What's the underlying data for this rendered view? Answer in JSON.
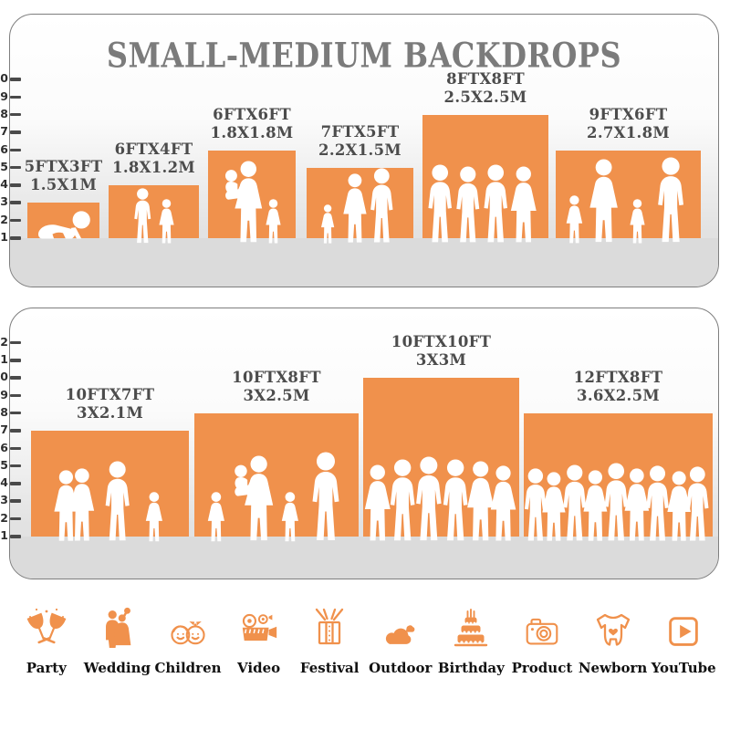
{
  "title": "SMALL-MEDIUM BACKDROPS",
  "colors": {
    "accent": "#F0914C",
    "title_text": "#7B7B7B",
    "bar_label_text": "#4C4C4C",
    "axis_text": "#2E2E2E",
    "floor": "#DBDBDB",
    "panel_border": "#7E7E7E",
    "figure": "#FFFFFF",
    "category_label_text": "#111111"
  },
  "chart_data": [
    {
      "type": "bar",
      "title": "SMALL-MEDIUM BACKDROPS",
      "ylabel": "",
      "ylim": [
        0,
        10
      ],
      "tick_step": 1,
      "grid": false,
      "legend": "none",
      "bars": [
        {
          "size_ft": "5FTX3FT",
          "size_m": "1.5X1M",
          "width_ft": 5,
          "height_ft": 3,
          "figures": [
            "crawling baby"
          ]
        },
        {
          "size_ft": "6FTX4FT",
          "size_m": "1.8X1.2M",
          "width_ft": 6,
          "height_ft": 4,
          "figures": [
            "boy",
            "girl"
          ]
        },
        {
          "size_ft": "6FTX6FT",
          "size_m": "1.8X1.8M",
          "width_ft": 6,
          "height_ft": 6,
          "figures": [
            "woman holding child",
            "girl"
          ]
        },
        {
          "size_ft": "7FTX5FT",
          "size_m": "2.2X1.5M",
          "width_ft": 7,
          "height_ft": 5,
          "figures": [
            "toddler",
            "woman",
            "man"
          ]
        },
        {
          "size_ft": "8FTX8FT",
          "size_m": "2.5X2.5M",
          "width_ft": 8,
          "height_ft": 8,
          "figures": [
            "man",
            "man",
            "man",
            "woman"
          ]
        },
        {
          "size_ft": "9FTX6FT",
          "size_m": "2.7X1.8M",
          "width_ft": 9,
          "height_ft": 6,
          "figures": [
            "girl",
            "woman",
            "girl",
            "man"
          ]
        }
      ]
    },
    {
      "type": "bar",
      "title": "",
      "ylabel": "",
      "ylim": [
        0,
        12
      ],
      "tick_step": 1,
      "grid": false,
      "legend": "none",
      "bars": [
        {
          "size_ft": "10FTX7FT",
          "size_m": "3X2.1M",
          "width_ft": 10,
          "height_ft": 7,
          "figures": [
            "woman",
            "woman",
            "man",
            "girl"
          ]
        },
        {
          "size_ft": "10FTX8FT",
          "size_m": "3X2.5M",
          "width_ft": 10,
          "height_ft": 8,
          "figures": [
            "girl",
            "woman holding child",
            "girl",
            "man"
          ]
        },
        {
          "size_ft": "10FTX10FT",
          "size_m": "3X3M",
          "width_ft": 10,
          "height_ft": 10,
          "figures": [
            "woman",
            "man",
            "man",
            "man",
            "woman",
            "woman"
          ]
        },
        {
          "size_ft": "12FTX8FT",
          "size_m": "3.6X2.5M",
          "width_ft": 12,
          "height_ft": 8,
          "figures": [
            "crowd of nine people"
          ]
        }
      ]
    }
  ],
  "categories": [
    {
      "label": "Party",
      "icon": "party-toast-icon"
    },
    {
      "label": "Wedding",
      "icon": "wedding-couple-icon"
    },
    {
      "label": "Children",
      "icon": "children-faces-icon"
    },
    {
      "label": "Video",
      "icon": "video-camera-icon"
    },
    {
      "label": "Festival",
      "icon": "gift-box-icon"
    },
    {
      "label": "Outdoor",
      "icon": "clouds-icon"
    },
    {
      "label": "Birthday",
      "icon": "birthday-cake-icon"
    },
    {
      "label": "Product",
      "icon": "photo-camera-icon"
    },
    {
      "label": "Newborn",
      "icon": "baby-onesie-icon"
    },
    {
      "label": "YouTube",
      "icon": "youtube-play-icon"
    }
  ]
}
